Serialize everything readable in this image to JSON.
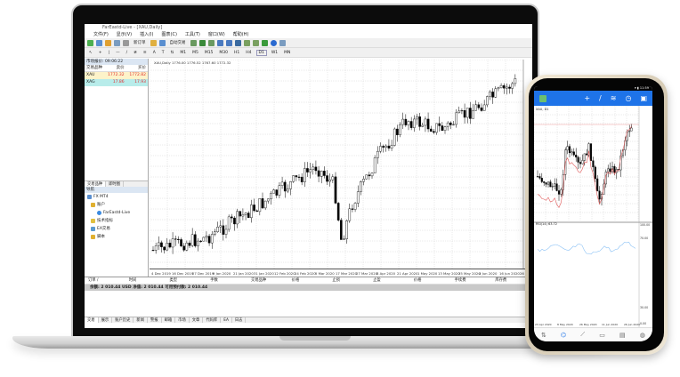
{
  "window": {
    "title": "FarEastd-Live - [XAU,Daily]"
  },
  "menu": [
    "文件(F)",
    "显示(V)",
    "插入(I)",
    "图表(C)",
    "工具(T)",
    "窗口(W)",
    "帮助(H)"
  ],
  "toolbar": {
    "new_order": "新订单",
    "auto_trading": "自动交易",
    "timeframes": [
      "M1",
      "M5",
      "M15",
      "M30",
      "H1",
      "H4",
      "D1",
      "W1",
      "MN"
    ]
  },
  "market_watch": {
    "title": "市场报价: 09:06:22",
    "columns": [
      "交易品种",
      "卖价",
      "买价"
    ],
    "rows": [
      {
        "symbol": "XAU",
        "bid": "1772.32",
        "ask": "1772.82"
      },
      {
        "symbol": "XAG",
        "bid": "17.86",
        "ask": "17.93"
      }
    ],
    "tabs": [
      "交易品种",
      "即时图"
    ]
  },
  "navigator": {
    "title": "导航",
    "items": [
      "FX MT4",
      "账户",
      "FarEastd-Live",
      "技术指标",
      "EA交易",
      "脚本"
    ],
    "tabs": [
      "常用",
      "收藏夹"
    ]
  },
  "chart": {
    "header": "XAU,Daily 1776.00 1776.52 1767.60 1772.32",
    "x_labels": [
      "4 Dec 2019",
      "16 Dec 2019",
      "27 Dec 2019",
      "9 Jan 2020",
      "21 Jan 2020",
      "31 Jan 2020",
      "12 Feb 2020",
      "24 Feb 2020",
      "5 Mar 2020",
      "17 Mar 2020",
      "27 Mar 2020",
      "8 Apr 2020",
      "21 Apr 2020",
      "1 May 2020",
      "13 May 2020",
      "25 May 2020",
      "4 Jun 2020",
      "16 Jun 2020",
      "26"
    ]
  },
  "terminal": {
    "columns": [
      "订单 /",
      "时间",
      "类型",
      "手数",
      "交易品种",
      "价格",
      "止损",
      "止盈",
      "价格",
      "手续费",
      "库存费"
    ],
    "balance": "余额: 2 010.44 USD  净值: 2 010.44  可用预付款: 2 010.44",
    "tabs": [
      "交易",
      "展示",
      "账户历史",
      "新闻",
      "警报",
      "邮箱",
      "市场",
      "文章",
      "代码库",
      "EA",
      "日志"
    ]
  },
  "phone": {
    "chart_header": "XAU, D1",
    "x_labels": [
      "23 Apr 2020",
      "8 May 2020",
      "26 May 2020",
      "11 Jun 2020",
      "26 Jun 2020"
    ],
    "indicator": "RSI(14) 63.72",
    "rsi_levels": [
      "100.00",
      "70.00",
      "30.00",
      "0.00"
    ],
    "colors": {
      "accent": "#1e73e8",
      "ma": "#e05a5a",
      "rsi": "#8cc2f5"
    }
  }
}
